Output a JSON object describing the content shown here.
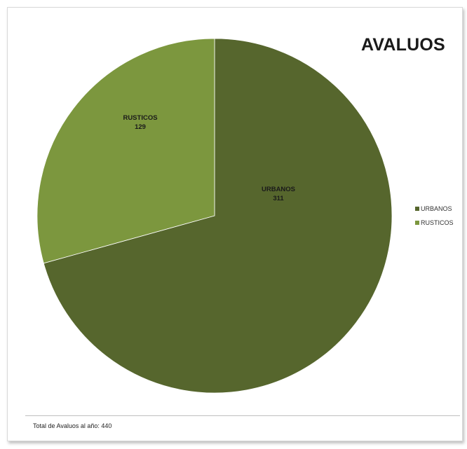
{
  "chart_data": {
    "type": "pie",
    "title": "AVALUOS",
    "categories": [
      "URBANOS",
      "RUSTICOS"
    ],
    "values": [
      311,
      129
    ],
    "colors": [
      "#56662d",
      "#7c973e"
    ],
    "data_labels": [
      {
        "name": "URBANOS",
        "value": "311"
      },
      {
        "name": "RUSTICOS",
        "value": "129"
      }
    ],
    "legend": {
      "placement": "right",
      "entries": [
        "URBANOS",
        "RUSTICOS"
      ]
    },
    "footer": "Total de Avaluos al año: 440"
  }
}
